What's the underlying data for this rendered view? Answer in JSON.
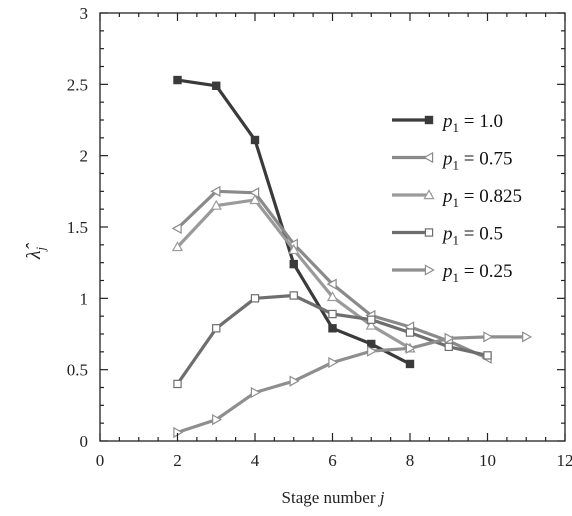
{
  "chart_data": {
    "type": "line",
    "xlabel": "Stage number j",
    "ylabel": "λ̂_j",
    "xlim": [
      0,
      12
    ],
    "ylim": [
      0,
      3
    ],
    "xticks": [
      0,
      2,
      4,
      6,
      8,
      10,
      12
    ],
    "yticks": [
      0,
      0.5,
      1,
      1.5,
      2,
      2.5,
      3
    ],
    "grid": false,
    "legend_position": "right",
    "series": [
      {
        "name": "p1 = 1.0",
        "legend_var": "p",
        "legend_sub": "1",
        "legend_value": " = 1.0",
        "color": "#3a3a3a",
        "marker": "filled-square",
        "points": [
          [
            2,
            2.53
          ],
          [
            3,
            2.49
          ],
          [
            4,
            2.11
          ],
          [
            5,
            1.24
          ],
          [
            6,
            0.79
          ],
          [
            7,
            0.68
          ],
          [
            8,
            0.54
          ]
        ]
      },
      {
        "name": "p1 = 0.75",
        "legend_var": "p",
        "legend_sub": "1",
        "legend_value": " = 0.75",
        "color": "#8a8a8a",
        "marker": "triangle-left",
        "points": [
          [
            2,
            1.49
          ],
          [
            3,
            1.75
          ],
          [
            4,
            1.74
          ],
          [
            5,
            1.38
          ],
          [
            6,
            1.1
          ],
          [
            7,
            0.88
          ],
          [
            8,
            0.8
          ],
          [
            9,
            0.7
          ],
          [
            10,
            0.58
          ]
        ]
      },
      {
        "name": "p1 = 0.825",
        "legend_var": "p",
        "legend_sub": "1",
        "legend_value": " = 0.825",
        "color": "#9a9a9a",
        "marker": "triangle-up",
        "points": [
          [
            2,
            1.36
          ],
          [
            3,
            1.65
          ],
          [
            4,
            1.69
          ],
          [
            5,
            1.34
          ],
          [
            6,
            1.01
          ],
          [
            7,
            0.81
          ],
          [
            8,
            0.65
          ]
        ]
      },
      {
        "name": "p1 = 0.5",
        "legend_var": "p",
        "legend_sub": "1",
        "legend_value": " = 0.5",
        "color": "#6e6e6e",
        "marker": "open-square",
        "points": [
          [
            2,
            0.4
          ],
          [
            3,
            0.79
          ],
          [
            4,
            1.0
          ],
          [
            5,
            1.02
          ],
          [
            6,
            0.89
          ],
          [
            7,
            0.85
          ],
          [
            8,
            0.76
          ],
          [
            9,
            0.66
          ],
          [
            10,
            0.6
          ]
        ]
      },
      {
        "name": "p1 = 0.25",
        "legend_var": "p",
        "legend_sub": "1",
        "legend_value": " = 0.25",
        "color": "#8e8e8e",
        "marker": "triangle-right",
        "points": [
          [
            2,
            0.06
          ],
          [
            3,
            0.15
          ],
          [
            4,
            0.34
          ],
          [
            5,
            0.42
          ],
          [
            6,
            0.55
          ],
          [
            7,
            0.63
          ],
          [
            8,
            0.65
          ],
          [
            9,
            0.72
          ],
          [
            10,
            0.73
          ],
          [
            11,
            0.73
          ]
        ]
      }
    ]
  }
}
